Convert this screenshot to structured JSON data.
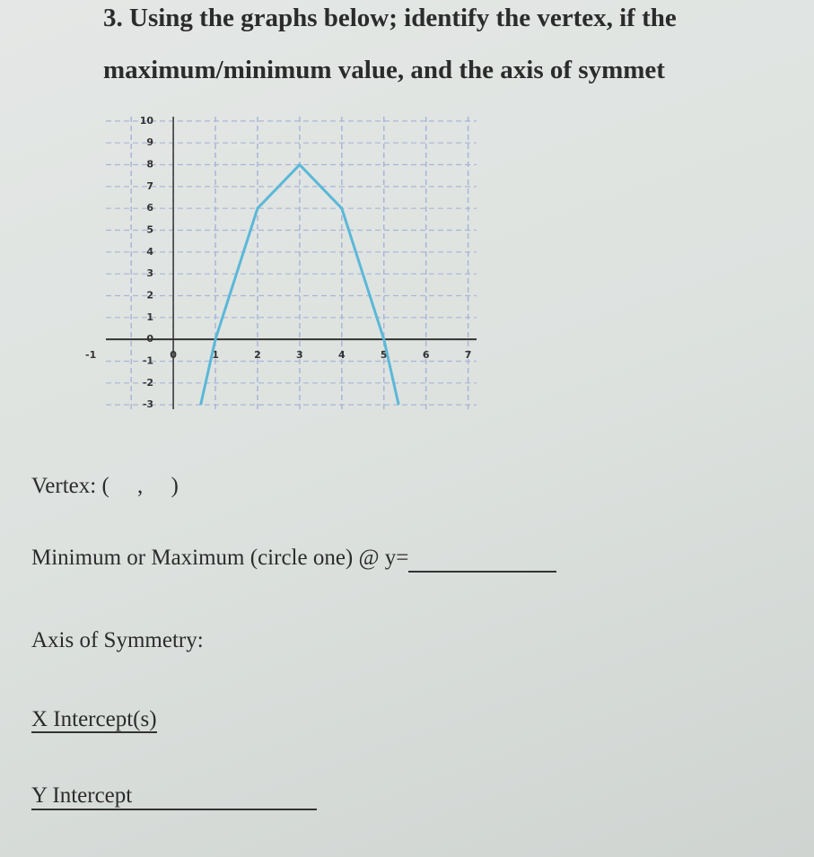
{
  "question": {
    "number": "3.",
    "lines": [
      "Using the graphs below; identify the vertex, if the",
      "maximum/minimum value, and the axis of symmet"
    ]
  },
  "graph": {
    "type": "line",
    "x": [
      0.65,
      1,
      2,
      3,
      4,
      5,
      5.35
    ],
    "values": [
      -3,
      0,
      6,
      8,
      6,
      0,
      -3
    ],
    "color": "#5bb8d8",
    "xlim": [
      -1.6,
      7.2
    ],
    "ylim": [
      -3.2,
      10.2
    ],
    "xticks": [
      -1,
      0,
      1,
      2,
      3,
      4,
      5,
      6,
      7
    ],
    "yticks": [
      -3,
      -2,
      -1,
      0,
      1,
      2,
      3,
      4,
      5,
      6,
      7,
      8,
      9,
      10
    ],
    "grid": true
  },
  "fields": {
    "vertex": "Vertex: (     ,     )",
    "extremum": "Minimum or Maximum (circle one) @ y=",
    "axis": "Axis of Symmetry:",
    "x_intercepts": "X Intercept(s)",
    "y_intercept": "Y Intercept"
  }
}
